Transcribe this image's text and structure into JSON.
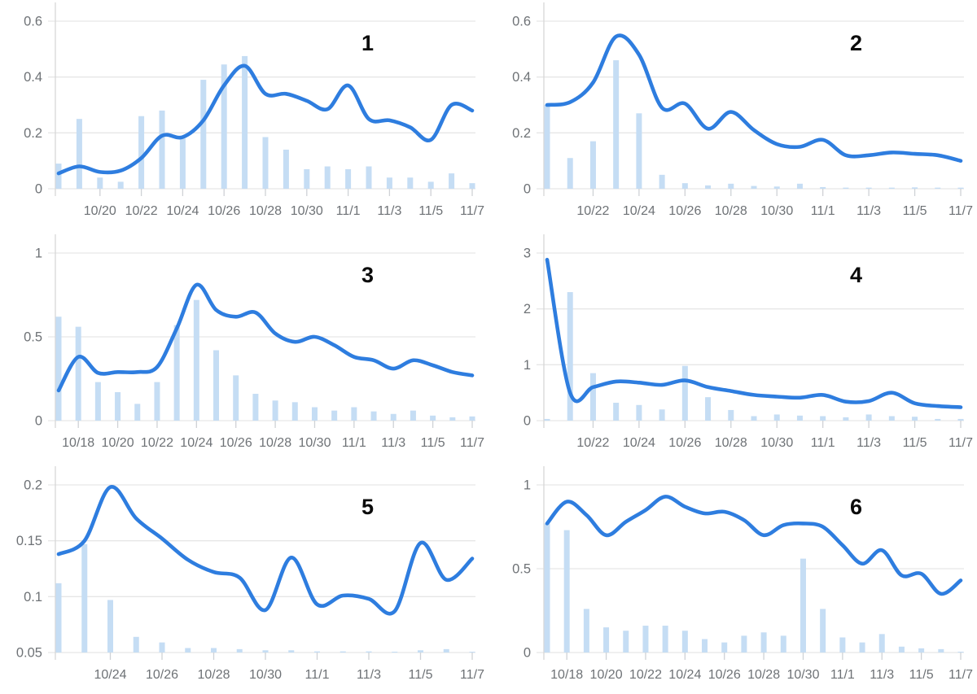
{
  "page": {
    "background": "#ffffff"
  },
  "colors": {
    "bar_fill": "#c5ddf4",
    "line_stroke": "#2e7ddf",
    "gridline": "#e6e6e6",
    "axis_line": "#d7d7d7",
    "tick_mark": "#cfd2d6",
    "tick_label": "#6e7control",
    "axis_label_color": "#6e7276",
    "panel_number_color": "#0b0b0b"
  },
  "chart_data": [
    {
      "type": "bar",
      "panel_label": "1",
      "legend": "none",
      "grid": "horizontal",
      "x": [
        "10/18",
        "10/19",
        "10/20",
        "10/21",
        "10/22",
        "10/23",
        "10/24",
        "10/25",
        "10/26",
        "10/27",
        "10/28",
        "10/29",
        "10/30",
        "10/31",
        "11/1",
        "11/2",
        "11/3",
        "11/4",
        "11/5",
        "11/6",
        "11/7"
      ],
      "x_tick_labels": [
        "10/20",
        "10/22",
        "10/24",
        "10/26",
        "10/28",
        "10/30",
        "11/1",
        "11/3",
        "11/5",
        "11/7"
      ],
      "ylim": [
        0,
        0.6
      ],
      "yticks": [
        0,
        0.2,
        0.4,
        0.6
      ],
      "ytick_labels": [
        "0",
        "0.2",
        "0.4",
        "0.6"
      ],
      "series": [
        {
          "name": "bars",
          "type": "bar",
          "values": [
            0.09,
            0.25,
            0.04,
            0.025,
            0.26,
            0.28,
            0.18,
            0.39,
            0.445,
            0.475,
            0.185,
            0.14,
            0.07,
            0.08,
            0.07,
            0.08,
            0.04,
            0.04,
            0.025,
            0.055,
            0.02
          ]
        },
        {
          "name": "line",
          "type": "line",
          "values": [
            0.055,
            0.08,
            0.06,
            0.065,
            0.11,
            0.19,
            0.185,
            0.245,
            0.37,
            0.44,
            0.34,
            0.34,
            0.315,
            0.285,
            0.37,
            0.25,
            0.245,
            0.22,
            0.175,
            0.3,
            0.28
          ]
        }
      ]
    },
    {
      "type": "bar",
      "panel_label": "2",
      "legend": "none",
      "grid": "horizontal",
      "x": [
        "10/20",
        "10/21",
        "10/22",
        "10/23",
        "10/24",
        "10/25",
        "10/26",
        "10/27",
        "10/28",
        "10/29",
        "10/30",
        "10/31",
        "11/1",
        "11/2",
        "11/3",
        "11/4",
        "11/5",
        "11/6",
        "11/7"
      ],
      "x_tick_labels": [
        "10/22",
        "10/24",
        "10/26",
        "10/28",
        "10/30",
        "11/1",
        "11/3",
        "11/5",
        "11/7"
      ],
      "ylim": [
        0,
        0.6
      ],
      "yticks": [
        0,
        0.2,
        0.4,
        0.6
      ],
      "ytick_labels": [
        "0",
        "0.2",
        "0.4",
        "0.6"
      ],
      "series": [
        {
          "name": "bars",
          "type": "bar",
          "values": [
            0.3,
            0.11,
            0.17,
            0.46,
            0.27,
            0.05,
            0.02,
            0.012,
            0.018,
            0.01,
            0.008,
            0.018,
            0.006,
            0.004,
            0.004,
            0.004,
            0.005,
            0.004,
            0.004
          ]
        },
        {
          "name": "line",
          "type": "line",
          "values": [
            0.3,
            0.31,
            0.38,
            0.545,
            0.48,
            0.29,
            0.305,
            0.215,
            0.275,
            0.21,
            0.16,
            0.15,
            0.175,
            0.12,
            0.12,
            0.13,
            0.125,
            0.12,
            0.1
          ]
        }
      ]
    },
    {
      "type": "bar",
      "panel_label": "3",
      "legend": "none",
      "grid": "horizontal",
      "x": [
        "10/17",
        "10/18",
        "10/19",
        "10/20",
        "10/21",
        "10/22",
        "10/23",
        "10/24",
        "10/25",
        "10/26",
        "10/27",
        "10/28",
        "10/29",
        "10/30",
        "10/31",
        "11/1",
        "11/2",
        "11/3",
        "11/4",
        "11/5",
        "11/6",
        "11/7"
      ],
      "x_tick_labels": [
        "10/18",
        "10/20",
        "10/22",
        "10/24",
        "10/26",
        "10/28",
        "10/30",
        "11/1",
        "11/3",
        "11/5",
        "11/7"
      ],
      "ylim": [
        0,
        1
      ],
      "yticks": [
        0,
        0.5,
        1
      ],
      "ytick_labels": [
        "0",
        "0.5",
        "1"
      ],
      "series": [
        {
          "name": "bars",
          "type": "bar",
          "values": [
            0.62,
            0.56,
            0.23,
            0.17,
            0.1,
            0.23,
            0.57,
            0.72,
            0.42,
            0.27,
            0.16,
            0.12,
            0.11,
            0.08,
            0.06,
            0.08,
            0.055,
            0.04,
            0.06,
            0.03,
            0.02,
            0.025
          ]
        },
        {
          "name": "line",
          "type": "line",
          "values": [
            0.18,
            0.38,
            0.285,
            0.29,
            0.29,
            0.32,
            0.55,
            0.81,
            0.66,
            0.62,
            0.645,
            0.52,
            0.47,
            0.5,
            0.45,
            0.38,
            0.36,
            0.31,
            0.36,
            0.33,
            0.29,
            0.27
          ]
        }
      ]
    },
    {
      "type": "bar",
      "panel_label": "4",
      "legend": "none",
      "grid": "horizontal",
      "x": [
        "10/20",
        "10/21",
        "10/22",
        "10/23",
        "10/24",
        "10/25",
        "10/26",
        "10/27",
        "10/28",
        "10/29",
        "10/30",
        "10/31",
        "11/1",
        "11/2",
        "11/3",
        "11/4",
        "11/5",
        "11/6",
        "11/7"
      ],
      "x_tick_labels": [
        "10/22",
        "10/24",
        "10/26",
        "10/28",
        "10/30",
        "11/1",
        "11/3",
        "11/5",
        "11/7"
      ],
      "ylim": [
        0,
        3
      ],
      "yticks": [
        0,
        1,
        2,
        3
      ],
      "ytick_labels": [
        "0",
        "1",
        "2",
        "3"
      ],
      "series": [
        {
          "name": "bars",
          "type": "bar",
          "values": [
            0.03,
            2.3,
            0.85,
            0.32,
            0.28,
            0.2,
            0.98,
            0.42,
            0.19,
            0.08,
            0.11,
            0.09,
            0.08,
            0.06,
            0.11,
            0.08,
            0.07,
            0.03,
            0.03
          ]
        },
        {
          "name": "line",
          "type": "line",
          "values": [
            2.88,
            0.5,
            0.6,
            0.7,
            0.68,
            0.64,
            0.72,
            0.6,
            0.53,
            0.46,
            0.43,
            0.41,
            0.46,
            0.34,
            0.35,
            0.5,
            0.31,
            0.26,
            0.24
          ]
        }
      ]
    },
    {
      "type": "bar",
      "panel_label": "5",
      "legend": "none",
      "grid": "horizontal",
      "x": [
        "10/22",
        "10/23",
        "10/24",
        "10/25",
        "10/26",
        "10/27",
        "10/28",
        "10/29",
        "10/30",
        "10/31",
        "11/1",
        "11/2",
        "11/3",
        "11/4",
        "11/5",
        "11/6",
        "11/7"
      ],
      "x_tick_labels": [
        "10/24",
        "10/26",
        "10/28",
        "10/30",
        "11/1",
        "11/3",
        "11/5",
        "11/7"
      ],
      "ylim": [
        0.05,
        0.2
      ],
      "yticks": [
        0.05,
        0.1,
        0.15,
        0.2
      ],
      "ytick_labels": [
        "0.05",
        "0.1",
        "0.15",
        "0.2"
      ],
      "series": [
        {
          "name": "bars",
          "type": "bar",
          "values": [
            0.112,
            0.147,
            0.097,
            0.064,
            0.059,
            0.054,
            0.054,
            0.053,
            0.052,
            0.052,
            0.051,
            0.051,
            0.051,
            0.05,
            0.052,
            0.053,
            0.05
          ]
        },
        {
          "name": "line",
          "type": "line",
          "values": [
            0.138,
            0.15,
            0.198,
            0.17,
            0.152,
            0.133,
            0.122,
            0.117,
            0.088,
            0.135,
            0.093,
            0.101,
            0.098,
            0.087,
            0.148,
            0.115,
            0.134
          ]
        }
      ]
    },
    {
      "type": "bar",
      "panel_label": "6",
      "legend": "none",
      "grid": "horizontal",
      "x": [
        "10/17",
        "10/18",
        "10/19",
        "10/20",
        "10/21",
        "10/22",
        "10/23",
        "10/24",
        "10/25",
        "10/26",
        "10/27",
        "10/28",
        "10/29",
        "10/30",
        "10/31",
        "11/1",
        "11/2",
        "11/3",
        "11/4",
        "11/5",
        "11/6",
        "11/7"
      ],
      "x_tick_labels": [
        "10/18",
        "10/20",
        "10/22",
        "10/24",
        "10/26",
        "10/28",
        "10/30",
        "11/1",
        "11/3",
        "11/5",
        "11/7"
      ],
      "ylim": [
        0,
        1
      ],
      "yticks": [
        0,
        0.5,
        1
      ],
      "ytick_labels": [
        "0",
        "0.5",
        "1"
      ],
      "series": [
        {
          "name": "bars",
          "type": "bar",
          "values": [
            0.77,
            0.73,
            0.26,
            0.15,
            0.13,
            0.16,
            0.16,
            0.13,
            0.08,
            0.06,
            0.1,
            0.12,
            0.1,
            0.56,
            0.26,
            0.09,
            0.06,
            0.11,
            0.035,
            0.025,
            0.02,
            0.005
          ]
        },
        {
          "name": "line",
          "type": "line",
          "values": [
            0.77,
            0.9,
            0.82,
            0.7,
            0.78,
            0.85,
            0.93,
            0.87,
            0.83,
            0.84,
            0.79,
            0.7,
            0.76,
            0.77,
            0.75,
            0.64,
            0.53,
            0.61,
            0.46,
            0.47,
            0.35,
            0.43
          ]
        }
      ]
    }
  ]
}
